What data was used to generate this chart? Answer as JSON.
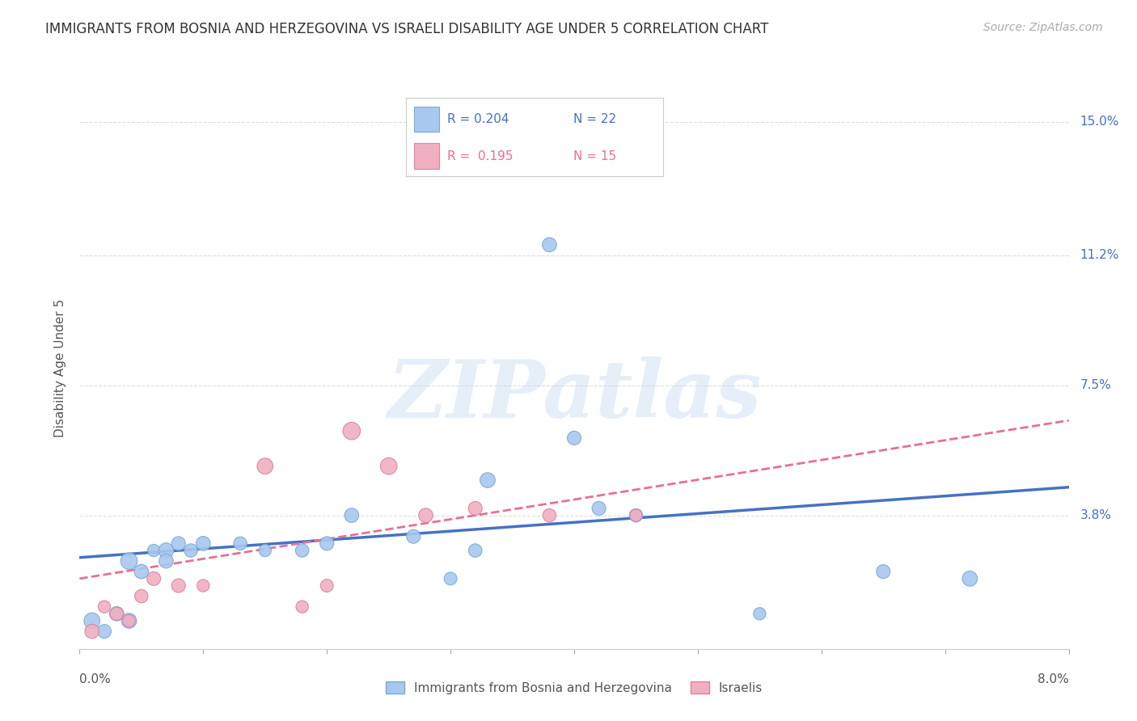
{
  "title": "IMMIGRANTS FROM BOSNIA AND HERZEGOVINA VS ISRAELI DISABILITY AGE UNDER 5 CORRELATION CHART",
  "source": "Source: ZipAtlas.com",
  "ylabel": "Disability Age Under 5",
  "x_label_bottom_left": "0.0%",
  "x_label_bottom_right": "8.0%",
  "xmin": 0.0,
  "xmax": 0.08,
  "ymin": 0.0,
  "ymax": 0.16,
  "yticks": [
    0.0,
    0.038,
    0.075,
    0.112,
    0.15
  ],
  "ytick_labels": [
    "",
    "3.8%",
    "7.5%",
    "11.2%",
    "15.0%"
  ],
  "legend_bottom": [
    "Immigrants from Bosnia and Herzegovina",
    "Israelis"
  ],
  "blue_color": "#a8c8f0",
  "blue_edge": "#7aaad0",
  "pink_color": "#f0b0c0",
  "pink_edge": "#e080a0",
  "background_color": "#ffffff",
  "grid_color": "#dddddd",
  "blue_scatter": [
    [
      0.001,
      0.008
    ],
    [
      0.002,
      0.005
    ],
    [
      0.003,
      0.01
    ],
    [
      0.004,
      0.008
    ],
    [
      0.004,
      0.025
    ],
    [
      0.005,
      0.022
    ],
    [
      0.006,
      0.028
    ],
    [
      0.007,
      0.028
    ],
    [
      0.007,
      0.025
    ],
    [
      0.008,
      0.03
    ],
    [
      0.009,
      0.028
    ],
    [
      0.01,
      0.03
    ],
    [
      0.013,
      0.03
    ],
    [
      0.015,
      0.028
    ],
    [
      0.018,
      0.028
    ],
    [
      0.02,
      0.03
    ],
    [
      0.022,
      0.038
    ],
    [
      0.027,
      0.032
    ],
    [
      0.03,
      0.02
    ],
    [
      0.032,
      0.028
    ],
    [
      0.033,
      0.048
    ],
    [
      0.038,
      0.115
    ],
    [
      0.04,
      0.06
    ],
    [
      0.042,
      0.04
    ],
    [
      0.045,
      0.038
    ],
    [
      0.055,
      0.01
    ],
    [
      0.065,
      0.022
    ],
    [
      0.072,
      0.02
    ]
  ],
  "blue_scatter_sizes": [
    200,
    150,
    160,
    180,
    220,
    160,
    120,
    180,
    160,
    150,
    140,
    160,
    140,
    120,
    140,
    150,
    160,
    150,
    130,
    140,
    180,
    160,
    150,
    150,
    140,
    120,
    150,
    180
  ],
  "pink_scatter": [
    [
      0.001,
      0.005
    ],
    [
      0.002,
      0.012
    ],
    [
      0.003,
      0.01
    ],
    [
      0.004,
      0.008
    ],
    [
      0.005,
      0.015
    ],
    [
      0.006,
      0.02
    ],
    [
      0.008,
      0.018
    ],
    [
      0.01,
      0.018
    ],
    [
      0.015,
      0.052
    ],
    [
      0.018,
      0.012
    ],
    [
      0.02,
      0.018
    ],
    [
      0.022,
      0.062
    ],
    [
      0.025,
      0.052
    ],
    [
      0.028,
      0.038
    ],
    [
      0.032,
      0.04
    ],
    [
      0.038,
      0.038
    ],
    [
      0.045,
      0.038
    ]
  ],
  "pink_scatter_sizes": [
    160,
    120,
    140,
    120,
    140,
    150,
    150,
    120,
    200,
    120,
    130,
    240,
    220,
    160,
    150,
    140,
    120
  ],
  "blue_line_x": [
    0.0,
    0.08
  ],
  "blue_line_y": [
    0.026,
    0.046
  ],
  "pink_line_x": [
    0.0,
    0.08
  ],
  "pink_line_y": [
    0.02,
    0.065
  ],
  "watermark": "ZIPatlas",
  "title_fontsize": 12,
  "axis_label_fontsize": 11,
  "source_fontsize": 10
}
